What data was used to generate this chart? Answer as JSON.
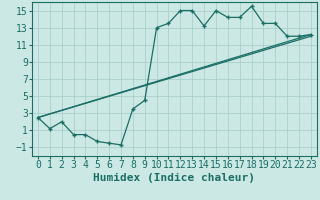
{
  "xlabel": "Humidex (Indice chaleur)",
  "bg_color": "#cce8e4",
  "grid_color": "#aacfca",
  "line_color": "#1a6e65",
  "xlim": [
    -0.5,
    23.5
  ],
  "ylim": [
    -2.0,
    16.0
  ],
  "xticks": [
    0,
    1,
    2,
    3,
    4,
    5,
    6,
    7,
    8,
    9,
    10,
    11,
    12,
    13,
    14,
    15,
    16,
    17,
    18,
    19,
    20,
    21,
    22,
    23
  ],
  "yticks": [
    -1,
    1,
    3,
    5,
    7,
    9,
    11,
    13,
    15
  ],
  "series1_x": [
    0,
    1,
    2,
    3,
    4,
    5,
    6,
    7,
    8,
    9,
    10,
    11,
    12,
    13,
    14,
    15,
    16,
    17,
    18,
    19,
    20,
    21,
    22,
    23
  ],
  "series1_y": [
    2.5,
    1.2,
    2.0,
    0.5,
    0.5,
    -0.3,
    -0.5,
    -0.7,
    3.5,
    4.5,
    13.0,
    13.5,
    15.0,
    15.0,
    13.2,
    15.0,
    14.2,
    14.2,
    15.5,
    13.5,
    13.5,
    12.0,
    12.0,
    12.2
  ],
  "series2_x": [
    0,
    23
  ],
  "series2_y": [
    2.5,
    12.2
  ],
  "series3_x": [
    0,
    23
  ],
  "series3_y": [
    2.5,
    12.0
  ],
  "font_size": 7
}
